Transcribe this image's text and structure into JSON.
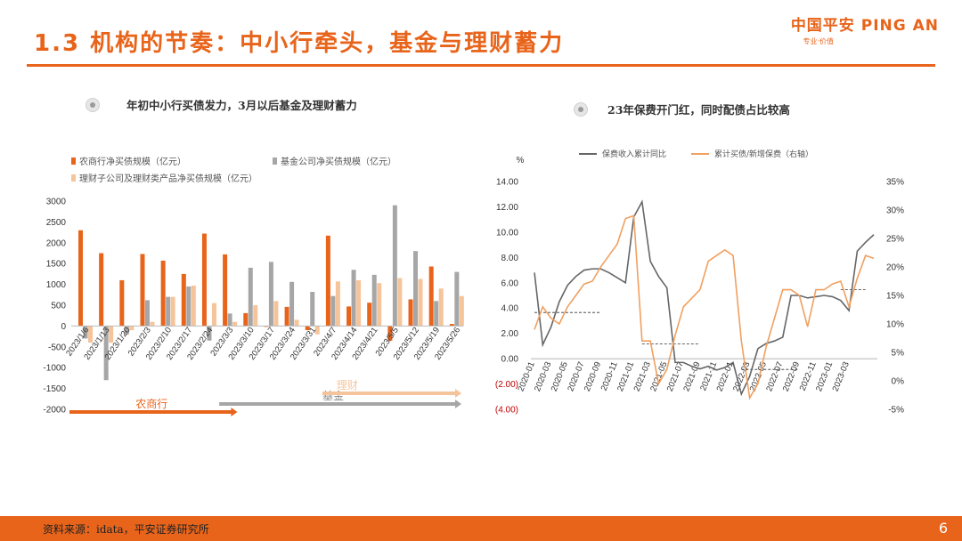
{
  "header": {
    "title": "1.3 机构的节奏：中小行牵头，基金与理财蓄力",
    "logo_text": "中国平安 PING AN",
    "logo_sub": "专业·价值"
  },
  "left_section": {
    "heading": "年初中小行买债发力，3月以后基金及理财蓄力"
  },
  "right_section": {
    "heading": "23年保费开门红，同时配债占比较高"
  },
  "footer": {
    "source": "资料来源：idata，平安证券研究所",
    "page": "6"
  },
  "colors": {
    "orange": "#e8641b",
    "gray": "#a6a6a6",
    "peach": "#f6c49a",
    "line_gray": "#666666",
    "line_orange": "#f0a060"
  },
  "chart_data": [
    {
      "type": "bar",
      "categories": [
        "2023/1/6",
        "2023/1/13",
        "2023/1/20",
        "2023/2/3",
        "2023/2/10",
        "2023/2/17",
        "2023/2/24",
        "2023/3/3",
        "2023/3/10",
        "2023/3/17",
        "2023/3/24",
        "2023/3/31",
        "2023/4/7",
        "2023/4/14",
        "2023/4/21",
        "2023/5/5",
        "2023/5/12",
        "2023/5/19",
        "2023/5/26"
      ],
      "series": [
        {
          "name": "农商行净买债规模（亿元）",
          "values": [
            2300,
            1750,
            1100,
            1730,
            1570,
            1250,
            2220,
            1720,
            310,
            -20,
            460,
            -100,
            2170,
            470,
            560,
            -350,
            640,
            1430,
            50
          ]
        },
        {
          "name": "基金公司净买债规模（亿元）",
          "values": [
            -300,
            -1300,
            -200,
            620,
            700,
            950,
            -350,
            300,
            1400,
            1540,
            1060,
            820,
            720,
            1350,
            1230,
            2900,
            1800,
            600,
            1300
          ]
        },
        {
          "name": "理财子公司及理财类产品净买债规模（亿元）",
          "values": [
            -400,
            -400,
            -100,
            100,
            700,
            970,
            550,
            100,
            500,
            600,
            150,
            -200,
            1070,
            1100,
            1030,
            1150,
            1130,
            900,
            720
          ]
        }
      ],
      "ylim": [
        -2000,
        3000
      ],
      "yticks": [
        3000,
        2500,
        2000,
        1500,
        1000,
        500,
        0,
        -500,
        -1000,
        -1500,
        -2000
      ],
      "phase_arrows": [
        {
          "label": "农商行",
          "from": "2023/1/6",
          "to": "2023/3/10"
        },
        {
          "label": "基金",
          "from": "2023/3/3",
          "to": "2023/5/26"
        },
        {
          "label": "理财",
          "from": "2023/4/7",
          "to": "2023/5/26"
        }
      ]
    },
    {
      "type": "line",
      "ylabel": "%",
      "x_labels": [
        "2020-01",
        "2020-03",
        "2020-05",
        "2020-07",
        "2020-09",
        "2020-11",
        "2021-01",
        "2021-03",
        "2021-05",
        "2021-07",
        "2021-09",
        "2021-11",
        "2022-01",
        "2022-03",
        "2022-05",
        "2022-07",
        "2022-09",
        "2022-11",
        "2023-01",
        "2023-03"
      ],
      "series": [
        {
          "name": "保费收入累计同比",
          "axis": "left",
          "values": [
            6.8,
            1.1,
            2.5,
            4.5,
            5.8,
            6.5,
            7.0,
            7.1,
            7.1,
            6.8,
            6.4,
            6.0,
            11.2,
            12.4,
            7.7,
            6.5,
            5.6,
            -0.3,
            -0.3,
            -0.6,
            -0.8,
            -0.6,
            -0.9,
            -0.7,
            -0.3,
            -2.8,
            -1.4,
            0.8,
            1.2,
            1.4,
            1.7,
            5.0,
            5.0,
            4.8,
            4.9,
            5.0,
            4.9,
            4.6,
            3.8,
            8.5,
            9.2,
            9.8
          ]
        },
        {
          "name": "累计买债/新增保费（右轴）",
          "axis": "right",
          "values": [
            9,
            13,
            11,
            10,
            13,
            15,
            17,
            17.5,
            20,
            22,
            24,
            28.5,
            29,
            7,
            7,
            -0.5,
            2,
            8,
            13,
            14.5,
            16,
            21,
            22,
            23,
            22,
            7,
            -3,
            -0.5,
            6,
            11,
            16,
            16,
            15,
            9.5,
            16,
            16,
            17,
            17.5,
            13,
            18,
            22,
            21.5
          ]
        }
      ],
      "ylim_left": [
        -4,
        14
      ],
      "ylim_right": [
        -5,
        35
      ],
      "left_ticks": [
        "14.00",
        "12.00",
        "10.00",
        "8.00",
        "6.00",
        "4.00",
        "2.00",
        "0.00",
        "(2.00)",
        "(4.00)"
      ],
      "right_ticks": [
        "35%",
        "30%",
        "25%",
        "20%",
        "15%",
        "10%",
        "5%",
        "0%",
        "-5%"
      ],
      "annual_averages": [
        {
          "year": "2020",
          "value": 12
        },
        {
          "year": "2021",
          "value": 6.5
        },
        {
          "year": "2022",
          "value": 2
        },
        {
          "year": "2023",
          "value": 16
        }
      ]
    }
  ]
}
